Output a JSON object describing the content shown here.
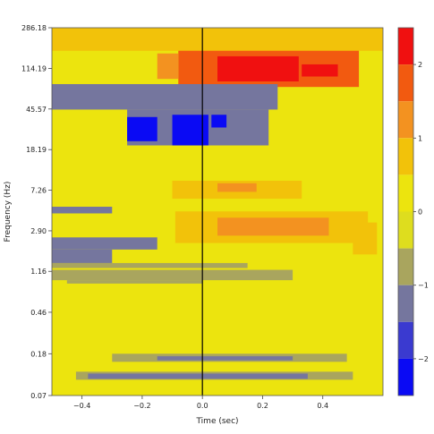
{
  "chart_data": {
    "type": "heatmap",
    "title": "",
    "xlabel": "Time (sec)",
    "ylabel": "Frequency (Hz)",
    "xlim": [
      -0.5,
      0.6
    ],
    "y_scale": "log",
    "ylim": [
      0.07,
      286.18
    ],
    "x_ticks": [
      {
        "value": -0.4,
        "label": "−0.4"
      },
      {
        "value": -0.2,
        "label": "−0.2"
      },
      {
        "value": 0.0,
        "label": "0.0"
      },
      {
        "value": 0.2,
        "label": "0.2"
      },
      {
        "value": 0.4,
        "label": "0.4"
      }
    ],
    "y_ticks": [
      {
        "value": 286.18,
        "label": "286.18"
      },
      {
        "value": 114.19,
        "label": "114.19"
      },
      {
        "value": 45.57,
        "label": "45.57"
      },
      {
        "value": 18.19,
        "label": "18.19"
      },
      {
        "value": 7.26,
        "label": "7.26"
      },
      {
        "value": 2.9,
        "label": "2.90"
      },
      {
        "value": 1.16,
        "label": "1.16"
      },
      {
        "value": 0.46,
        "label": "0.46"
      },
      {
        "value": 0.18,
        "label": "0.18"
      },
      {
        "value": 0.07,
        "label": "0.07"
      }
    ],
    "event_marker_x": 0.0,
    "background_level": 0,
    "colorbar": {
      "range": [
        -2.5,
        2.5
      ],
      "ticks": [
        {
          "value": 2,
          "label": "2"
        },
        {
          "value": 1,
          "label": "1"
        },
        {
          "value": 0,
          "label": "0"
        },
        {
          "value": -1,
          "label": "−1"
        },
        {
          "value": -2,
          "label": "−2"
        }
      ],
      "bins": [
        {
          "from": 2.0,
          "to": 2.5,
          "color": "#f01010"
        },
        {
          "from": 1.5,
          "to": 2.0,
          "color": "#f25a10"
        },
        {
          "from": 1.0,
          "to": 1.5,
          "color": "#f39220"
        },
        {
          "from": 0.5,
          "to": 1.0,
          "color": "#f2c20a"
        },
        {
          "from": 0.0,
          "to": 0.5,
          "color": "#ece40e"
        },
        {
          "from": -0.5,
          "to": 0.0,
          "color": "#dedd1e"
        },
        {
          "from": -1.0,
          "to": -0.5,
          "color": "#a9a55e"
        },
        {
          "from": -1.5,
          "to": -1.0,
          "color": "#75769e"
        },
        {
          "from": -2.0,
          "to": -1.5,
          "color": "#3a3ad0"
        },
        {
          "from": -2.5,
          "to": -2.0,
          "color": "#0a0af4"
        }
      ]
    },
    "regions": [
      {
        "name": "gamma-burst",
        "value": 1.7,
        "x": [
          -0.08,
          0.52
        ],
        "f": [
          75,
          200
        ]
      },
      {
        "name": "gamma-core-1",
        "value": 2.2,
        "x": [
          0.05,
          0.32
        ],
        "f": [
          85,
          150
        ]
      },
      {
        "name": "gamma-core-2",
        "value": 2.2,
        "x": [
          0.33,
          0.45
        ],
        "f": [
          95,
          125
        ]
      },
      {
        "name": "gamma-edge-left",
        "value": 1.2,
        "x": [
          -0.15,
          -0.08
        ],
        "f": [
          90,
          160
        ]
      },
      {
        "name": "gamma-streaks",
        "value": 0.8,
        "x": [
          -0.5,
          0.6
        ],
        "f": [
          170,
          286
        ]
      },
      {
        "name": "beta-suppression-1",
        "value": -1.2,
        "x": [
          -0.5,
          0.25
        ],
        "f": [
          45,
          80
        ]
      },
      {
        "name": "beta-suppression-2",
        "value": -1.3,
        "x": [
          -0.25,
          0.22
        ],
        "f": [
          20,
          45
        ]
      },
      {
        "name": "beta-dip-core-1",
        "value": -2.1,
        "x": [
          -0.25,
          -0.15
        ],
        "f": [
          22,
          38
        ]
      },
      {
        "name": "beta-dip-core-2",
        "value": -2.1,
        "x": [
          -0.1,
          0.02
        ],
        "f": [
          20,
          40
        ]
      },
      {
        "name": "beta-dip-core-3",
        "value": -2.1,
        "x": [
          0.03,
          0.08
        ],
        "f": [
          30,
          40
        ]
      },
      {
        "name": "alpha-increase",
        "value": 0.8,
        "x": [
          -0.1,
          0.33
        ],
        "f": [
          6,
          9
        ]
      },
      {
        "name": "alpha-increase-core",
        "value": 1.2,
        "x": [
          0.05,
          0.18
        ],
        "f": [
          7,
          8.5
        ]
      },
      {
        "name": "theta-increase",
        "value": 0.9,
        "x": [
          -0.09,
          0.55
        ],
        "f": [
          2.2,
          4.5
        ]
      },
      {
        "name": "theta-increase-core",
        "value": 1.3,
        "x": [
          0.05,
          0.42
        ],
        "f": [
          2.6,
          3.9
        ]
      },
      {
        "name": "theta-right-edge",
        "value": 0.6,
        "x": [
          0.5,
          0.58
        ],
        "f": [
          1.7,
          3.5
        ]
      },
      {
        "name": "delta-suppression-1",
        "value": -1.2,
        "x": [
          -0.5,
          -0.3
        ],
        "f": [
          4.3,
          5.0
        ]
      },
      {
        "name": "delta-suppression-2",
        "value": -1.2,
        "x": [
          -0.5,
          -0.15
        ],
        "f": [
          1.9,
          2.5
        ]
      },
      {
        "name": "delta-suppression-3",
        "value": -1.2,
        "x": [
          -0.5,
          -0.3
        ],
        "f": [
          1.4,
          1.9
        ]
      },
      {
        "name": "delta-suppression-4",
        "value": -0.8,
        "x": [
          -0.5,
          0.15
        ],
        "f": [
          1.25,
          1.4
        ]
      },
      {
        "name": "delta-suppression-5",
        "value": -0.8,
        "x": [
          -0.5,
          0.3
        ],
        "f": [
          0.95,
          1.2
        ]
      },
      {
        "name": "delta-suppression-6",
        "value": -0.8,
        "x": [
          -0.45,
          0.0
        ],
        "f": [
          0.88,
          0.95
        ]
      },
      {
        "name": "slow-suppression-1",
        "value": -0.8,
        "x": [
          -0.3,
          0.48
        ],
        "f": [
          0.15,
          0.18
        ]
      },
      {
        "name": "slow-suppression-1-core",
        "value": -1.2,
        "x": [
          -0.15,
          0.3
        ],
        "f": [
          0.155,
          0.17
        ]
      },
      {
        "name": "slow-suppression-2",
        "value": -0.8,
        "x": [
          -0.42,
          0.5
        ],
        "f": [
          0.1,
          0.12
        ]
      },
      {
        "name": "slow-suppression-2-core",
        "value": -1.3,
        "x": [
          -0.38,
          0.35
        ],
        "f": [
          0.102,
          0.115
        ]
      }
    ]
  }
}
